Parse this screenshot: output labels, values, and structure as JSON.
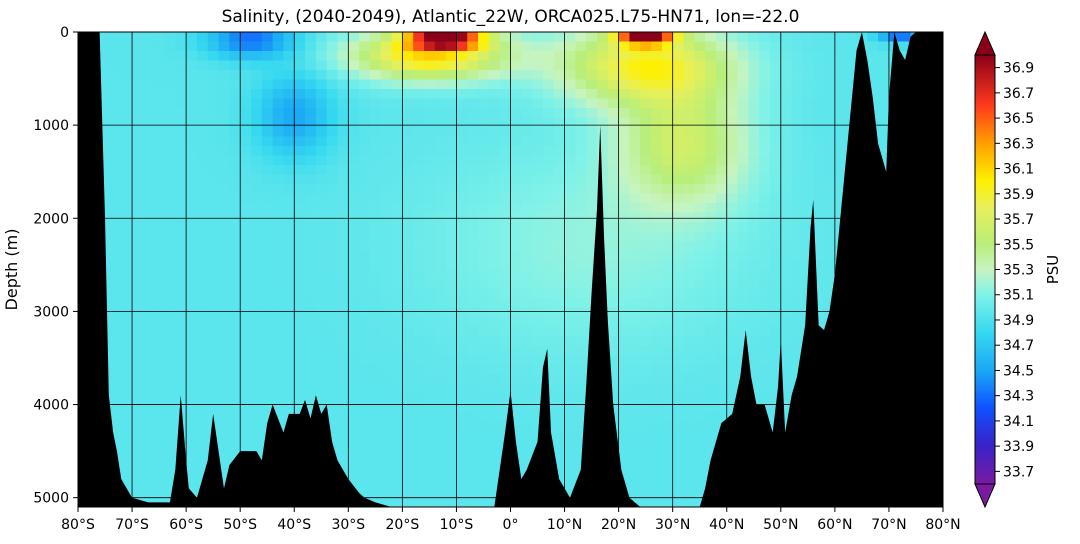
{
  "chart_data": {
    "type": "heatmap",
    "title": "Salinity, (2040-2049), Atlantic_22W, ORCA025.L75-HN71, lon=-22.0",
    "xlabel": "",
    "ylabel": "Depth (m)",
    "colorbar_label": "PSU",
    "x_range": [
      -80,
      80
    ],
    "y_range": [
      0,
      5100
    ],
    "y_inverted": true,
    "grid": true,
    "x_ticks": [
      -80,
      -70,
      -60,
      -50,
      -40,
      -30,
      -20,
      -10,
      0,
      10,
      20,
      30,
      40,
      50,
      60,
      70,
      80
    ],
    "x_tick_labels": [
      "80°S",
      "70°S",
      "60°S",
      "50°S",
      "40°S",
      "30°S",
      "20°S",
      "10°S",
      "0°",
      "10°N",
      "20°N",
      "30°N",
      "40°N",
      "50°N",
      "60°N",
      "70°N",
      "80°N"
    ],
    "y_ticks": [
      0,
      1000,
      2000,
      3000,
      4000,
      5000
    ],
    "y_tick_labels": [
      "0",
      "1000",
      "2000",
      "3000",
      "4000",
      "5000"
    ],
    "colorbar_range": [
      33.6,
      37.0
    ],
    "colorbar_extend": "both",
    "colorbar_ticks": [
      36.9,
      36.7,
      36.5,
      36.3,
      36.1,
      35.9,
      35.7,
      35.5,
      35.3,
      35.1,
      34.9,
      34.7,
      34.5,
      34.3,
      34.1,
      33.9,
      33.7
    ],
    "colorbar_tick_labels": [
      "36.9",
      "36.7",
      "36.5",
      "36.3",
      "36.1",
      "35.9",
      "35.7",
      "35.5",
      "35.3",
      "35.1",
      "34.9",
      "34.7",
      "34.5",
      "34.3",
      "34.1",
      "33.9",
      "33.7"
    ],
    "colormap": [
      {
        "value": 33.6,
        "color": "#7a1aa0"
      },
      {
        "value": 33.9,
        "color": "#3a22c8"
      },
      {
        "value": 34.2,
        "color": "#1050ff"
      },
      {
        "value": 34.5,
        "color": "#1aa8f5"
      },
      {
        "value": 34.8,
        "color": "#35d8f0"
      },
      {
        "value": 35.1,
        "color": "#80f2e8"
      },
      {
        "value": 35.3,
        "color": "#c8f4c0"
      },
      {
        "value": 35.5,
        "color": "#b8ee7a"
      },
      {
        "value": 35.8,
        "color": "#e8f058"
      },
      {
        "value": 36.0,
        "color": "#fff000"
      },
      {
        "value": 36.3,
        "color": "#ffa000"
      },
      {
        "value": 36.6,
        "color": "#ff3a1e"
      },
      {
        "value": 37.0,
        "color": "#8a0018"
      }
    ],
    "land_color": "#000000",
    "background_salinity": 34.95,
    "features": [
      {
        "name": "surface-salinity-max-south",
        "lat": -12,
        "depth": 80,
        "value": 36.9,
        "lat_spread": 7,
        "depth_spread": 90
      },
      {
        "name": "surface-salinity-max-north",
        "lat": 25,
        "depth": 60,
        "value": 36.8,
        "lat_spread": 5,
        "depth_spread": 80
      },
      {
        "name": "south-subtropical-upper",
        "lat": -15,
        "depth": 250,
        "value": 36.1,
        "lat_spread": 14,
        "depth_spread": 260
      },
      {
        "name": "north-subtropical-upper",
        "lat": 25,
        "depth": 350,
        "value": 35.9,
        "lat_spread": 16,
        "depth_spread": 420
      },
      {
        "name": "mediterranean-outflow",
        "lat": 32,
        "depth": 1200,
        "value": 35.6,
        "lat_spread": 12,
        "depth_spread": 650
      },
      {
        "name": "nadw",
        "lat": 15,
        "depth": 2300,
        "value": 35.15,
        "lat_spread": 30,
        "depth_spread": 1100
      },
      {
        "name": "aaiw",
        "lat": -40,
        "depth": 900,
        "value": 34.5,
        "lat_spread": 7,
        "depth_spread": 450
      },
      {
        "name": "southern-surface-fresh",
        "lat": -48,
        "depth": 80,
        "value": 34.3,
        "lat_spread": 8,
        "depth_spread": 200
      },
      {
        "name": "arctic-surface-fresh",
        "lat": 72,
        "depth": 40,
        "value": 34.3,
        "lat_spread": 4,
        "depth_spread": 80
      }
    ],
    "bathymetry": [
      [
        -80,
        0
      ],
      [
        -76,
        0
      ],
      [
        -75,
        2000
      ],
      [
        -74.3,
        3900
      ],
      [
        -73.5,
        4300
      ],
      [
        -72.8,
        4500
      ],
      [
        -72,
        4800
      ],
      [
        -70,
        5000
      ],
      [
        -67,
        5050
      ],
      [
        -63,
        5050
      ],
      [
        -62,
        4700
      ],
      [
        -61,
        3900
      ],
      [
        -60,
        4600
      ],
      [
        -59.5,
        4900
      ],
      [
        -58,
        5000
      ],
      [
        -56,
        4600
      ],
      [
        -55,
        4100
      ],
      [
        -54,
        4500
      ],
      [
        -53,
        4900
      ],
      [
        -52,
        4650
      ],
      [
        -50,
        4500
      ],
      [
        -47,
        4500
      ],
      [
        -46,
        4600
      ],
      [
        -45,
        4200
      ],
      [
        -44,
        4000
      ],
      [
        -42,
        4300
      ],
      [
        -41,
        4100
      ],
      [
        -39,
        4100
      ],
      [
        -38,
        3950
      ],
      [
        -37,
        4150
      ],
      [
        -36,
        3900
      ],
      [
        -35,
        4100
      ],
      [
        -34,
        4000
      ],
      [
        -33,
        4400
      ],
      [
        -32,
        4600
      ],
      [
        -30,
        4800
      ],
      [
        -28,
        4950
      ],
      [
        -27,
        5000
      ],
      [
        -25,
        5050
      ],
      [
        -22,
        5100
      ],
      [
        -3,
        5100
      ],
      [
        -2,
        4700
      ],
      [
        -1,
        4300
      ],
      [
        0,
        3850
      ],
      [
        1,
        4400
      ],
      [
        2,
        4800
      ],
      [
        3,
        4700
      ],
      [
        5,
        4400
      ],
      [
        6,
        3600
      ],
      [
        6.8,
        3400
      ],
      [
        7.5,
        4300
      ],
      [
        9,
        4800
      ],
      [
        11,
        5000
      ],
      [
        13,
        4700
      ],
      [
        14,
        3800
      ],
      [
        15,
        2800
      ],
      [
        16,
        1900
      ],
      [
        16.6,
        1000
      ],
      [
        17.3,
        2200
      ],
      [
        18,
        3100
      ],
      [
        19,
        4000
      ],
      [
        20.5,
        4700
      ],
      [
        22,
        5000
      ],
      [
        24,
        5100
      ],
      [
        35,
        5100
      ],
      [
        36,
        4900
      ],
      [
        37,
        4600
      ],
      [
        39,
        4200
      ],
      [
        41,
        4100
      ],
      [
        42.5,
        3700
      ],
      [
        43.5,
        3200
      ],
      [
        44.5,
        3700
      ],
      [
        45.5,
        4000
      ],
      [
        47,
        4000
      ],
      [
        48.5,
        4300
      ],
      [
        49.5,
        3800
      ],
      [
        50,
        3300
      ],
      [
        50.8,
        4300
      ],
      [
        52,
        3900
      ],
      [
        53,
        3700
      ],
      [
        54.5,
        3150
      ],
      [
        55.5,
        2100
      ],
      [
        56,
        1800
      ],
      [
        57,
        3150
      ],
      [
        58,
        3200
      ],
      [
        59,
        3000
      ],
      [
        60,
        2600
      ],
      [
        61,
        2000
      ],
      [
        62,
        1400
      ],
      [
        63,
        800
      ],
      [
        64,
        200
      ],
      [
        65,
        0
      ],
      [
        66,
        300
      ],
      [
        67,
        700
      ],
      [
        68,
        1200
      ],
      [
        69.5,
        1500
      ],
      [
        70,
        700
      ],
      [
        71,
        0
      ],
      [
        72,
        200
      ],
      [
        73,
        300
      ],
      [
        74,
        50
      ],
      [
        75,
        0
      ],
      [
        80,
        0
      ]
    ]
  }
}
